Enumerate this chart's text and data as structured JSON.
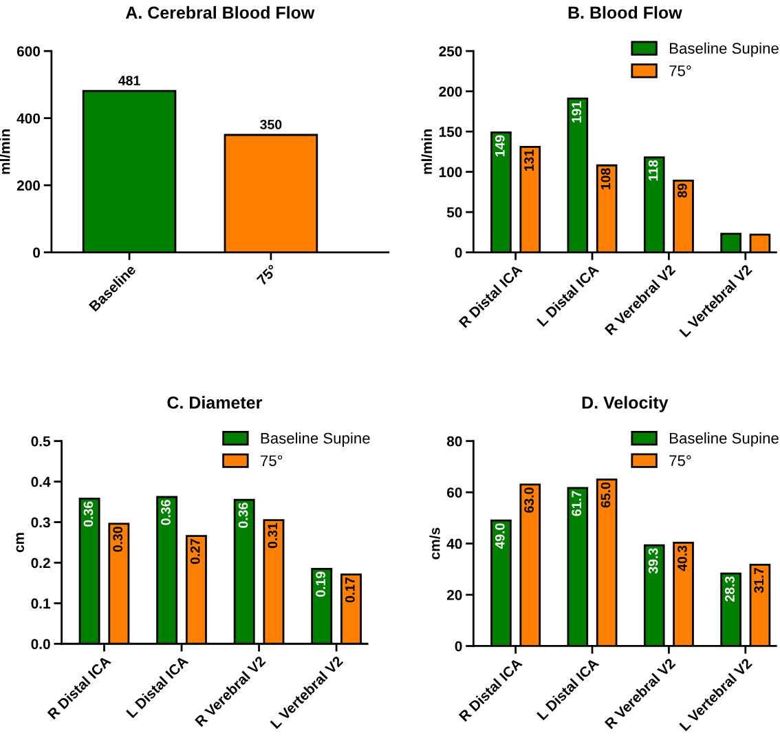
{
  "chart_data": [
    {
      "type": "bar",
      "title": "A. Cerebral Blood Flow",
      "ylabel": "ml/min",
      "categories": [
        "Baseline",
        "75°"
      ],
      "values": [
        481,
        350
      ],
      "colors": [
        "#007f00",
        "#ff7f00"
      ],
      "data_labels": true,
      "ylim": [
        0,
        600
      ],
      "yticks": [
        0,
        200,
        400,
        600
      ],
      "grid": false,
      "legend": false
    },
    {
      "type": "bar",
      "title": "B. Blood Flow",
      "ylabel": "ml/min",
      "categories": [
        "R Distal ICA",
        "L Distal ICA",
        "R Verebral V2",
        "L Vertebral V2"
      ],
      "series": [
        {
          "name": "Baseline Supine",
          "color": "#007f00",
          "values": [
            149,
            191,
            118,
            23
          ],
          "value_labels": [
            "149",
            "191",
            "118",
            null
          ]
        },
        {
          "name": "75°",
          "color": "#ff7f00",
          "values": [
            131,
            108,
            89,
            22
          ],
          "value_labels": [
            "131",
            "108",
            "89",
            null
          ]
        }
      ],
      "ylim": [
        0,
        250
      ],
      "yticks": [
        0,
        50,
        100,
        150,
        200,
        250
      ],
      "grid": false,
      "legend": "top right"
    },
    {
      "type": "bar",
      "title": "C. Diameter",
      "ylabel": "cm",
      "categories": [
        "R Distal ICA",
        "L Distal ICA",
        "R Verebral V2",
        "L Vertebral V2"
      ],
      "series": [
        {
          "name": "Baseline Supine",
          "color": "#007f00",
          "values": [
            0.358,
            0.362,
            0.355,
            0.185
          ],
          "value_labels": [
            "0.36",
            "0.36",
            "0.36",
            "0.19"
          ]
        },
        {
          "name": "75°",
          "color": "#ff7f00",
          "values": [
            0.296,
            0.266,
            0.305,
            0.171
          ],
          "value_labels": [
            "0.30",
            "0.27",
            "0.31",
            "0.17"
          ]
        }
      ],
      "ylim": [
        0,
        0.5
      ],
      "yticks": [
        {
          "value": 0,
          "label": "0.0"
        },
        0.1,
        0.2,
        0.3,
        0.4,
        0.5
      ],
      "grid": false,
      "legend": "top right"
    },
    {
      "type": "bar",
      "title": "D. Velocity",
      "ylabel": "cm/s",
      "categories": [
        "R Distal ICA",
        "L Distal ICA",
        "R Verebral V2",
        "L Vertebral V2"
      ],
      "series": [
        {
          "name": "Baseline Supine",
          "color": "#007f00",
          "values": [
            49.0,
            61.7,
            39.3,
            28.3
          ],
          "value_labels": [
            "49.0",
            "61.7",
            "39.3",
            "28.3"
          ]
        },
        {
          "name": "75°",
          "color": "#ff7f00",
          "values": [
            63.0,
            65.0,
            40.3,
            31.7
          ],
          "value_labels": [
            "63.0",
            "65.0",
            "40.3",
            "31.7"
          ]
        }
      ],
      "ylim": [
        0,
        80
      ],
      "yticks": [
        0,
        20,
        40,
        60,
        80
      ],
      "grid": false,
      "legend": "top right"
    }
  ]
}
